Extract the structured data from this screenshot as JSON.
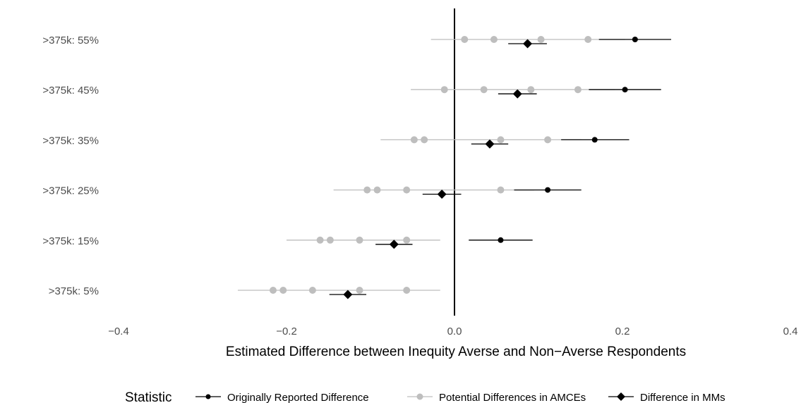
{
  "chart_data": {
    "type": "scatter",
    "subtype": "dot-and-whisker",
    "orientation": "horizontal",
    "xlabel": "Estimated Difference between Inequity Averse and Non−Averse Respondents",
    "xlim": [
      -0.4,
      0.4
    ],
    "xticks": [
      -0.4,
      -0.2,
      0.0,
      0.2,
      0.4
    ],
    "xtick_labels": [
      "−0.4",
      "−0.2",
      "0.0",
      "0.2",
      "0.4"
    ],
    "reference_line_x": 0,
    "grid": false,
    "categories": [
      ">375k: 55%",
      ">375k: 45%",
      ">375k: 35%",
      ">375k: 25%",
      ">375k: 15%",
      ">375k: 5%"
    ],
    "legend": {
      "title": "Statistic",
      "position": "bottom",
      "entries": [
        {
          "label": "Originally Reported Difference",
          "color": "#000000",
          "marker": "circle"
        },
        {
          "label": "Potential Differences in AMCEs",
          "color": "#bebebe",
          "marker": "circle"
        },
        {
          "label": "Difference in MMs",
          "color": "#000000",
          "marker": "diamond"
        }
      ]
    },
    "series": [
      {
        "name": "Potential Differences in AMCEs",
        "color": "#bebebe",
        "points": [
          {
            "category": ">375k: 55%",
            "values": [
              0.012,
              0.047,
              0.103,
              0.159
            ],
            "ci_low": -0.028,
            "ci_high": 0.203
          },
          {
            "category": ">375k: 45%",
            "values": [
              -0.012,
              0.035,
              0.091,
              0.147
            ],
            "ci_low": -0.052,
            "ci_high": 0.191
          },
          {
            "category": ">375k: 35%",
            "values": [
              -0.048,
              -0.036,
              0.055,
              0.111
            ],
            "ci_low": -0.088,
            "ci_high": 0.151
          },
          {
            "category": ">375k: 25%",
            "values": [
              -0.104,
              -0.092,
              -0.057,
              0.055
            ],
            "ci_low": -0.144,
            "ci_high": 0.095
          },
          {
            "category": ">375k: 15%",
            "values": [
              -0.16,
              -0.148,
              -0.113,
              -0.057
            ],
            "ci_low": -0.2,
            "ci_high": -0.017
          },
          {
            "category": ">375k: 5%",
            "values": [
              -0.216,
              -0.204,
              -0.169,
              -0.113,
              -0.057
            ],
            "ci_low": -0.258,
            "ci_high": -0.017
          }
        ]
      },
      {
        "name": "Originally Reported Difference",
        "color": "#000000",
        "points": [
          {
            "category": ">375k: 55%",
            "value": 0.215,
            "ci_low": 0.172,
            "ci_high": 0.258
          },
          {
            "category": ">375k: 45%",
            "value": 0.203,
            "ci_low": 0.16,
            "ci_high": 0.246
          },
          {
            "category": ">375k: 35%",
            "value": 0.167,
            "ci_low": 0.127,
            "ci_high": 0.208
          },
          {
            "category": ">375k: 25%",
            "value": 0.111,
            "ci_low": 0.071,
            "ci_high": 0.151
          },
          {
            "category": ">375k: 15%",
            "value": 0.055,
            "ci_low": 0.017,
            "ci_high": 0.093
          }
        ]
      },
      {
        "name": "Difference in MMs",
        "color": "#000000",
        "points": [
          {
            "category": ">375k: 55%",
            "value": 0.087,
            "ci_low": 0.064,
            "ci_high": 0.11
          },
          {
            "category": ">375k: 45%",
            "value": 0.075,
            "ci_low": 0.052,
            "ci_high": 0.098
          },
          {
            "category": ">375k: 35%",
            "value": 0.042,
            "ci_low": 0.02,
            "ci_high": 0.064
          },
          {
            "category": ">375k: 25%",
            "value": -0.015,
            "ci_low": -0.038,
            "ci_high": 0.008
          },
          {
            "category": ">375k: 15%",
            "value": -0.072,
            "ci_low": -0.094,
            "ci_high": -0.05
          },
          {
            "category": ">375k: 5%",
            "value": -0.127,
            "ci_low": -0.149,
            "ci_high": -0.105
          }
        ]
      }
    ]
  }
}
